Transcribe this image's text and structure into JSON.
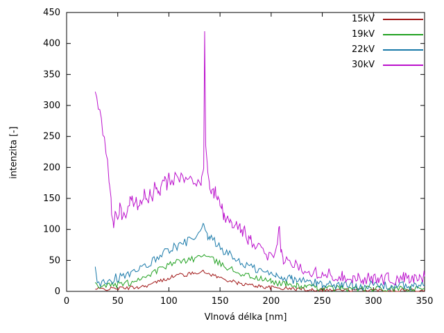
{
  "chart_data": {
    "type": "line",
    "title": "",
    "xlabel": "Vlnová délka [nm]",
    "ylabel": "intenzita [-]",
    "xlim": [
      0,
      350
    ],
    "ylim": [
      0,
      450
    ],
    "xtick": 50,
    "ytick": 50,
    "grid": false,
    "legend_position": "top-right-inside",
    "axis_color": "#000000",
    "series": [
      {
        "name": "15kV",
        "color": "#a01515",
        "noise": 3,
        "points": [
          [
            28,
            3
          ],
          [
            35,
            4
          ],
          [
            42,
            4
          ],
          [
            49,
            5
          ],
          [
            56,
            5
          ],
          [
            63,
            6
          ],
          [
            70,
            7
          ],
          [
            77,
            9
          ],
          [
            84,
            12
          ],
          [
            88,
            15
          ],
          [
            92,
            17
          ],
          [
            96,
            19
          ],
          [
            100,
            22
          ],
          [
            104,
            24
          ],
          [
            108,
            26
          ],
          [
            112,
            28
          ],
          [
            116,
            26
          ],
          [
            120,
            28
          ],
          [
            124,
            30
          ],
          [
            128,
            31
          ],
          [
            132,
            32
          ],
          [
            136,
            30
          ],
          [
            140,
            28
          ],
          [
            144,
            26
          ],
          [
            148,
            23
          ],
          [
            152,
            21
          ],
          [
            156,
            19
          ],
          [
            160,
            17
          ],
          [
            164,
            15
          ],
          [
            168,
            13
          ],
          [
            172,
            12
          ],
          [
            176,
            11
          ],
          [
            180,
            10
          ],
          [
            185,
            9
          ],
          [
            190,
            8
          ],
          [
            195,
            7
          ],
          [
            200,
            6
          ],
          [
            205,
            6
          ],
          [
            210,
            5
          ],
          [
            215,
            5
          ],
          [
            220,
            4
          ],
          [
            225,
            4
          ],
          [
            230,
            4
          ],
          [
            235,
            3
          ],
          [
            240,
            3
          ],
          [
            250,
            3
          ],
          [
            260,
            2
          ],
          [
            270,
            2
          ],
          [
            280,
            2
          ],
          [
            290,
            2
          ],
          [
            300,
            2
          ],
          [
            310,
            2
          ],
          [
            320,
            2
          ],
          [
            330,
            2
          ],
          [
            340,
            2
          ],
          [
            350,
            2
          ]
        ]
      },
      {
        "name": "19kV",
        "color": "#1fa01f",
        "noise": 5,
        "points": [
          [
            28,
            12
          ],
          [
            31,
            8
          ],
          [
            34,
            10
          ],
          [
            37,
            9
          ],
          [
            40,
            11
          ],
          [
            43,
            9
          ],
          [
            46,
            12
          ],
          [
            49,
            10
          ],
          [
            52,
            13
          ],
          [
            55,
            11
          ],
          [
            58,
            14
          ],
          [
            61,
            13
          ],
          [
            64,
            16
          ],
          [
            67,
            18
          ],
          [
            70,
            20
          ],
          [
            73,
            22
          ],
          [
            76,
            24
          ],
          [
            79,
            26
          ],
          [
            82,
            28
          ],
          [
            85,
            31
          ],
          [
            88,
            33
          ],
          [
            91,
            36
          ],
          [
            94,
            38
          ],
          [
            97,
            40
          ],
          [
            100,
            42
          ],
          [
            103,
            44
          ],
          [
            106,
            46
          ],
          [
            109,
            48
          ],
          [
            112,
            50
          ],
          [
            115,
            48
          ],
          [
            118,
            52
          ],
          [
            121,
            54
          ],
          [
            124,
            50
          ],
          [
            127,
            55
          ],
          [
            130,
            57
          ],
          [
            133,
            60
          ],
          [
            136,
            56
          ],
          [
            139,
            54
          ],
          [
            142,
            52
          ],
          [
            145,
            49
          ],
          [
            148,
            46
          ],
          [
            151,
            44
          ],
          [
            154,
            41
          ],
          [
            157,
            39
          ],
          [
            160,
            37
          ],
          [
            163,
            34
          ],
          [
            166,
            32
          ],
          [
            169,
            30
          ],
          [
            172,
            28
          ],
          [
            175,
            27
          ],
          [
            178,
            25
          ],
          [
            181,
            24
          ],
          [
            184,
            22
          ],
          [
            187,
            21
          ],
          [
            190,
            20
          ],
          [
            195,
            18
          ],
          [
            200,
            16
          ],
          [
            205,
            14
          ],
          [
            210,
            13
          ],
          [
            215,
            12
          ],
          [
            220,
            10
          ],
          [
            225,
            9
          ],
          [
            230,
            8
          ],
          [
            235,
            8
          ],
          [
            240,
            7
          ],
          [
            245,
            6
          ],
          [
            250,
            6
          ],
          [
            260,
            5
          ],
          [
            270,
            5
          ],
          [
            280,
            4
          ],
          [
            290,
            4
          ],
          [
            300,
            4
          ],
          [
            310,
            3
          ],
          [
            320,
            3
          ],
          [
            330,
            4
          ],
          [
            340,
            3
          ],
          [
            350,
            4
          ]
        ]
      },
      {
        "name": "22kV",
        "color": "#1778a8",
        "noise": 7,
        "points": [
          [
            28,
            35
          ],
          [
            30,
            18
          ],
          [
            33,
            14
          ],
          [
            36,
            20
          ],
          [
            39,
            16
          ],
          [
            42,
            22
          ],
          [
            45,
            18
          ],
          [
            48,
            24
          ],
          [
            51,
            20
          ],
          [
            54,
            26
          ],
          [
            57,
            22
          ],
          [
            60,
            28
          ],
          [
            63,
            26
          ],
          [
            66,
            32
          ],
          [
            69,
            30
          ],
          [
            72,
            36
          ],
          [
            75,
            38
          ],
          [
            78,
            42
          ],
          [
            81,
            44
          ],
          [
            84,
            48
          ],
          [
            87,
            52
          ],
          [
            90,
            58
          ],
          [
            93,
            60
          ],
          [
            96,
            64
          ],
          [
            99,
            66
          ],
          [
            102,
            70
          ],
          [
            105,
            72
          ],
          [
            108,
            68
          ],
          [
            111,
            74
          ],
          [
            114,
            78
          ],
          [
            117,
            80
          ],
          [
            120,
            84
          ],
          [
            123,
            80
          ],
          [
            126,
            86
          ],
          [
            129,
            92
          ],
          [
            132,
            98
          ],
          [
            134,
            105
          ],
          [
            136,
            92
          ],
          [
            138,
            88
          ],
          [
            140,
            86
          ],
          [
            143,
            82
          ],
          [
            146,
            78
          ],
          [
            149,
            72
          ],
          [
            152,
            68
          ],
          [
            155,
            64
          ],
          [
            158,
            60
          ],
          [
            161,
            58
          ],
          [
            164,
            54
          ],
          [
            167,
            50
          ],
          [
            170,
            48
          ],
          [
            173,
            44
          ],
          [
            176,
            42
          ],
          [
            179,
            40
          ],
          [
            182,
            38
          ],
          [
            185,
            36
          ],
          [
            190,
            33
          ],
          [
            195,
            30
          ],
          [
            200,
            28
          ],
          [
            205,
            26
          ],
          [
            210,
            24
          ],
          [
            215,
            22
          ],
          [
            220,
            20
          ],
          [
            225,
            18
          ],
          [
            230,
            17
          ],
          [
            235,
            16
          ],
          [
            240,
            14
          ],
          [
            245,
            13
          ],
          [
            250,
            12
          ],
          [
            260,
            11
          ],
          [
            270,
            10
          ],
          [
            280,
            10
          ],
          [
            290,
            9
          ],
          [
            300,
            10
          ],
          [
            310,
            9
          ],
          [
            320,
            8
          ],
          [
            330,
            9
          ],
          [
            340,
            8
          ],
          [
            350,
            10
          ]
        ]
      },
      {
        "name": "30kV",
        "color": "#bb10cc",
        "noise": 10,
        "points": [
          [
            28,
            330
          ],
          [
            31,
            300
          ],
          [
            34,
            270
          ],
          [
            37,
            240
          ],
          [
            40,
            205
          ],
          [
            42,
            175
          ],
          [
            44,
            130
          ],
          [
            46,
            110
          ],
          [
            48,
            128
          ],
          [
            50,
            112
          ],
          [
            52,
            138
          ],
          [
            54,
            122
          ],
          [
            56,
            135
          ],
          [
            58,
            118
          ],
          [
            60,
            132
          ],
          [
            62,
            145
          ],
          [
            64,
            160
          ],
          [
            66,
            140
          ],
          [
            68,
            150
          ],
          [
            70,
            138
          ],
          [
            72,
            152
          ],
          [
            74,
            140
          ],
          [
            76,
            158
          ],
          [
            78,
            145
          ],
          [
            80,
            150
          ],
          [
            82,
            162
          ],
          [
            84,
            148
          ],
          [
            86,
            185
          ],
          [
            88,
            158
          ],
          [
            90,
            170
          ],
          [
            92,
            160
          ],
          [
            94,
            175
          ],
          [
            96,
            182
          ],
          [
            98,
            170
          ],
          [
            100,
            185
          ],
          [
            103,
            172
          ],
          [
            106,
            188
          ],
          [
            109,
            175
          ],
          [
            112,
            185
          ],
          [
            115,
            178
          ],
          [
            118,
            172
          ],
          [
            121,
            186
          ],
          [
            124,
            175
          ],
          [
            127,
            168
          ],
          [
            130,
            180
          ],
          [
            132,
            178
          ],
          [
            134,
            205
          ],
          [
            135,
            425
          ],
          [
            136,
            235
          ],
          [
            138,
            188
          ],
          [
            140,
            172
          ],
          [
            142,
            165
          ],
          [
            144,
            158
          ],
          [
            146,
            162
          ],
          [
            148,
            150
          ],
          [
            150,
            148
          ],
          [
            152,
            132
          ],
          [
            154,
            122
          ],
          [
            156,
            118
          ],
          [
            158,
            112
          ],
          [
            160,
            108
          ],
          [
            162,
            112
          ],
          [
            164,
            100
          ],
          [
            166,
            104
          ],
          [
            168,
            95
          ],
          [
            170,
            102
          ],
          [
            172,
            92
          ],
          [
            174,
            96
          ],
          [
            176,
            88
          ],
          [
            178,
            84
          ],
          [
            180,
            82
          ],
          [
            183,
            78
          ],
          [
            186,
            72
          ],
          [
            189,
            68
          ],
          [
            192,
            62
          ],
          [
            195,
            58
          ],
          [
            198,
            55
          ],
          [
            201,
            52
          ],
          [
            204,
            55
          ],
          [
            206,
            72
          ],
          [
            208,
            100
          ],
          [
            210,
            62
          ],
          [
            212,
            52
          ],
          [
            215,
            48
          ],
          [
            218,
            46
          ],
          [
            221,
            44
          ],
          [
            224,
            42
          ],
          [
            227,
            40
          ],
          [
            230,
            38
          ],
          [
            234,
            36
          ],
          [
            238,
            34
          ],
          [
            242,
            32
          ],
          [
            246,
            30
          ],
          [
            250,
            30
          ],
          [
            255,
            28
          ],
          [
            260,
            26
          ],
          [
            265,
            25
          ],
          [
            270,
            24
          ],
          [
            275,
            24
          ],
          [
            280,
            22
          ],
          [
            285,
            22
          ],
          [
            290,
            20
          ],
          [
            295,
            20
          ],
          [
            300,
            20
          ],
          [
            305,
            22
          ],
          [
            310,
            20
          ],
          [
            315,
            22
          ],
          [
            320,
            18
          ],
          [
            325,
            20
          ],
          [
            330,
            22
          ],
          [
            335,
            18
          ],
          [
            340,
            20
          ],
          [
            345,
            22
          ],
          [
            350,
            24
          ]
        ]
      }
    ]
  }
}
